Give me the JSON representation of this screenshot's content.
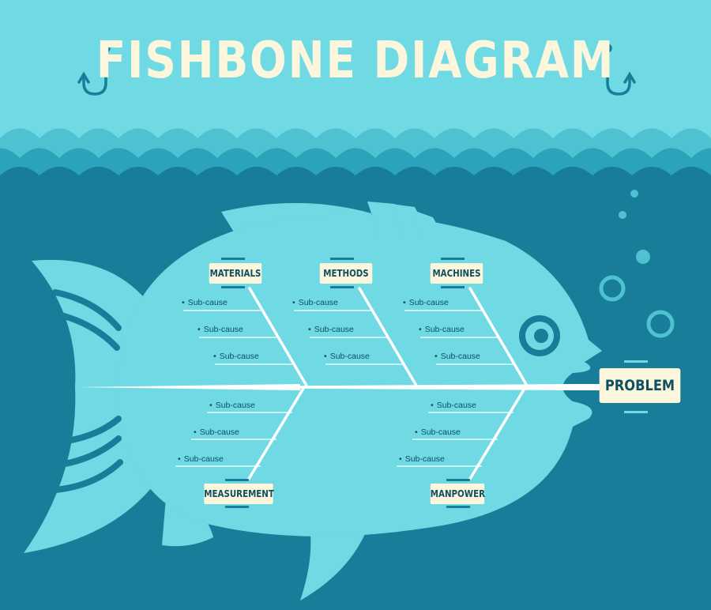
{
  "title": "FISHBONE DIAGRAM",
  "colors": {
    "sky": "#6fd9e4",
    "sea": "#177d98",
    "fish": "#6fd9e4",
    "bone": "#ffffff",
    "label_bg": "#fbf6dc",
    "ink": "#0e4f63"
  },
  "problem": "PROBLEM",
  "categories": {
    "materials": "MATERIALS",
    "methods": "METHODS",
    "machines": "MACHINES",
    "measurement": "MEASUREMENT",
    "manpower": "MANPOWER"
  },
  "subcause_label": "Sub-cause"
}
